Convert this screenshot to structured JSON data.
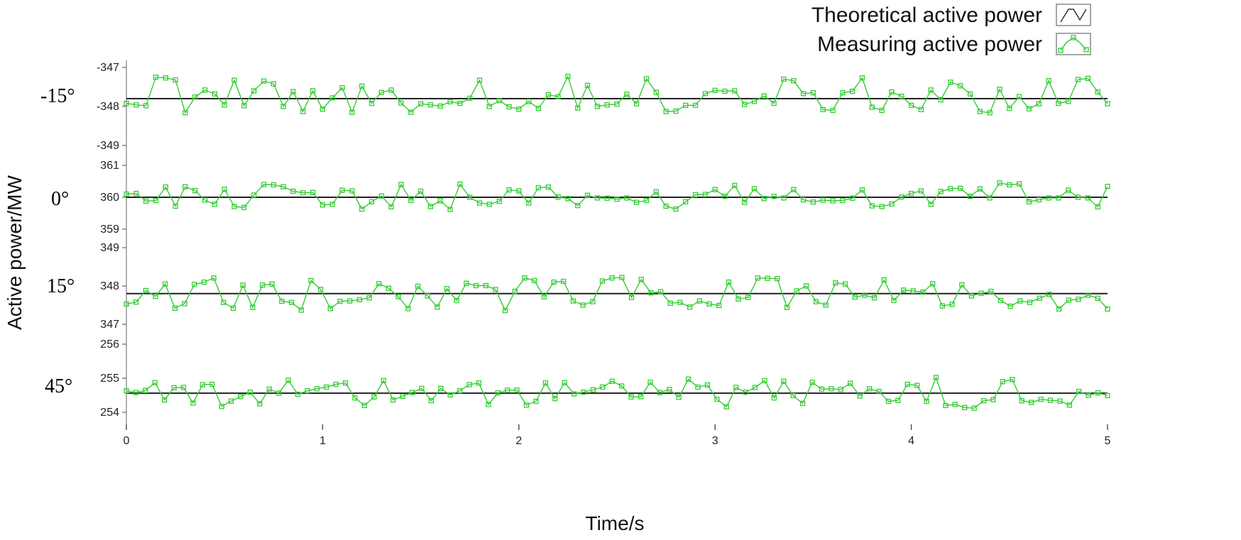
{
  "chart_data": {
    "type": "line",
    "xlabel": "Time/s",
    "ylabel": "Active power/MW",
    "xlim": [
      0,
      5
    ],
    "xticks": [
      0,
      1,
      2,
      3,
      4,
      5
    ],
    "grid": false,
    "legend_position": "top-right",
    "legend": [
      {
        "label": "Theoretical active power",
        "color": "#222222"
      },
      {
        "label": "Measuring active power",
        "color": "#33cc33"
      }
    ],
    "panels": [
      {
        "label": "-15°",
        "ylim": [
          -349,
          -347
        ],
        "yticks": [
          -347,
          -348,
          -349
        ],
        "theoretical": -347.8,
        "measured": [
          -347.92,
          -347.96,
          -347.98,
          -347.25,
          -347.27,
          -347.32,
          -348.16,
          -347.76,
          -347.58,
          -347.68,
          -347.96,
          -347.33,
          -347.98,
          -347.6,
          -347.35,
          -347.42,
          -348.0,
          -347.62,
          -348.13,
          -347.6,
          -348.07,
          -347.78,
          -347.52,
          -348.15,
          -347.48,
          -347.92,
          -347.64,
          -347.58,
          -347.91,
          -348.15,
          -347.93,
          -347.96,
          -347.99,
          -347.88,
          -347.92,
          -347.79,
          -347.33,
          -348.0,
          -347.85,
          -348.01,
          -348.07,
          -347.87,
          -348.05,
          -347.7,
          -347.75,
          -347.23,
          -348.04,
          -347.46,
          -348.0,
          -347.96,
          -347.94,
          -347.69,
          -347.93,
          -347.29,
          -347.64,
          -348.13,
          -348.12,
          -347.97,
          -347.97,
          -347.67,
          -347.59,
          -347.61,
          -347.6,
          -347.95,
          -347.87,
          -347.73,
          -347.92,
          -347.3,
          -347.34,
          -347.67,
          -347.65,
          -348.08,
          -348.1,
          -347.65,
          -347.61,
          -347.27,
          -348.02,
          -348.1,
          -347.63,
          -347.74,
          -347.97,
          -348.08,
          -347.58,
          -347.83,
          -347.38,
          -347.47,
          -347.68,
          -348.13,
          -348.16,
          -347.56,
          -348.05,
          -347.75,
          -348.06,
          -347.93,
          -347.34,
          -347.92,
          -347.87,
          -347.31,
          -347.28,
          -347.63,
          -347.93
        ]
      },
      {
        "label": "0°",
        "ylim": [
          359,
          361
        ],
        "yticks": [
          361,
          360,
          359
        ],
        "theoretical": 360.0,
        "measured": [
          360.1,
          360.12,
          359.88,
          359.9,
          360.32,
          359.72,
          360.33,
          360.21,
          359.91,
          359.78,
          360.25,
          359.71,
          359.68,
          360.07,
          360.4,
          360.39,
          360.33,
          360.19,
          360.14,
          360.15,
          359.76,
          359.78,
          360.22,
          360.2,
          359.63,
          359.86,
          360.04,
          359.7,
          360.4,
          359.9,
          360.19,
          359.71,
          359.89,
          359.62,
          360.41,
          360.0,
          359.82,
          359.78,
          359.87,
          360.23,
          360.2,
          359.82,
          360.3,
          360.32,
          360.01,
          359.96,
          359.74,
          360.06,
          359.98,
          359.97,
          359.94,
          359.98,
          359.84,
          359.9,
          360.17,
          359.72,
          359.63,
          359.86,
          360.08,
          360.09,
          360.24,
          360.03,
          360.37,
          359.84,
          360.27,
          359.96,
          360.03,
          359.98,
          360.24,
          359.92,
          359.85,
          359.91,
          359.89,
          359.9,
          359.97,
          360.23,
          359.73,
          359.71,
          359.79,
          360.01,
          360.12,
          360.2,
          359.78,
          360.18,
          360.27,
          360.28,
          360.03,
          360.26,
          359.98,
          360.45,
          360.39,
          360.42,
          359.86,
          359.92,
          359.98,
          359.98,
          360.22,
          360.0,
          359.98,
          359.7,
          360.34
        ]
      },
      {
        "label": "15°",
        "ylim": [
          347,
          349
        ],
        "yticks": [
          349,
          348,
          347
        ],
        "theoretical": 347.8,
        "measured": [
          347.53,
          347.58,
          347.88,
          347.73,
          348.05,
          347.42,
          347.54,
          348.04,
          348.1,
          348.21,
          347.57,
          347.42,
          348.02,
          347.44,
          348.02,
          348.05,
          347.6,
          347.57,
          347.37,
          348.14,
          347.91,
          347.41,
          347.6,
          347.61,
          347.64,
          347.69,
          348.06,
          347.94,
          347.72,
          347.41,
          347.99,
          347.74,
          347.45,
          347.93,
          347.62,
          348.07,
          348.01,
          348.01,
          347.91,
          347.36,
          347.86,
          348.21,
          348.14,
          347.72,
          348.1,
          348.12,
          347.61,
          347.5,
          347.59,
          348.13,
          348.21,
          348.22,
          347.7,
          348.17,
          347.82,
          347.85,
          347.55,
          347.57,
          347.45,
          347.61,
          347.53,
          347.49,
          348.1,
          347.66,
          347.7,
          348.21,
          348.2,
          348.19,
          347.44,
          347.87,
          348.0,
          347.59,
          347.5,
          348.08,
          348.05,
          347.71,
          347.76,
          347.69,
          348.16,
          347.62,
          347.89,
          347.87,
          347.84,
          348.06,
          347.48,
          347.52,
          348.03,
          347.74,
          347.81,
          347.86,
          347.62,
          347.47,
          347.61,
          347.57,
          347.68,
          347.78,
          347.4,
          347.63,
          347.65,
          347.76,
          347.68,
          347.4
        ]
      },
      {
        "label": "45°",
        "ylim": [
          254,
          256
        ],
        "yticks": [
          256,
          255,
          254
        ],
        "theoretical": 254.56,
        "measured": [
          254.63,
          254.58,
          254.64,
          254.87,
          254.36,
          254.72,
          254.73,
          254.27,
          254.81,
          254.82,
          254.17,
          254.33,
          254.46,
          254.59,
          254.25,
          254.68,
          254.56,
          254.94,
          254.53,
          254.63,
          254.69,
          254.74,
          254.82,
          254.86,
          254.42,
          254.2,
          254.45,
          254.93,
          254.36,
          254.47,
          254.58,
          254.7,
          254.34,
          254.7,
          254.51,
          254.63,
          254.81,
          254.86,
          254.23,
          254.57,
          254.65,
          254.65,
          254.21,
          254.32,
          254.86,
          254.4,
          254.87,
          254.54,
          254.59,
          254.66,
          254.74,
          254.91,
          254.77,
          254.45,
          254.46,
          254.88,
          254.58,
          254.67,
          254.44,
          254.97,
          254.74,
          254.8,
          254.38,
          254.16,
          254.73,
          254.59,
          254.73,
          254.93,
          254.42,
          254.91,
          254.49,
          254.26,
          254.88,
          254.68,
          254.69,
          254.67,
          254.85,
          254.48,
          254.69,
          254.61,
          254.32,
          254.35,
          254.82,
          254.79,
          254.32,
          255.02,
          254.2,
          254.23,
          254.14,
          254.12,
          254.34,
          254.37,
          254.9,
          254.96,
          254.34,
          254.29,
          254.38,
          254.35,
          254.33,
          254.21,
          254.61,
          254.5,
          254.57,
          254.49
        ]
      }
    ]
  }
}
